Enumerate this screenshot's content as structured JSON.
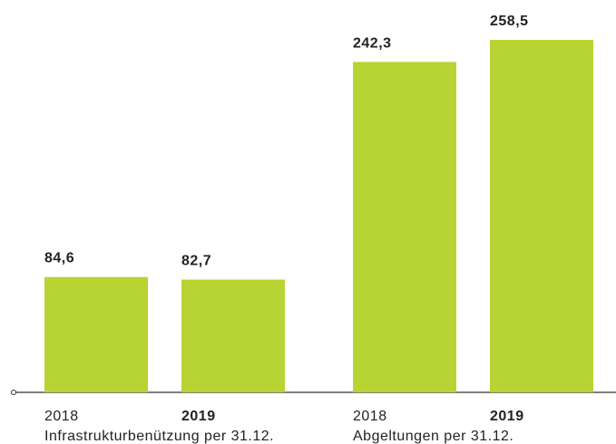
{
  "chart_data": {
    "type": "bar",
    "categories": [
      "2018",
      "2019",
      "2018",
      "2019"
    ],
    "groups": [
      "Infrastrukturbenützung per 31.12.",
      "Abgeltungen per 31.12."
    ],
    "values": [
      84.6,
      82.7,
      242.3,
      258.5
    ],
    "value_labels": [
      "84,6",
      "82,7",
      "242,3",
      "258,5"
    ],
    "color": "#b7d433"
  }
}
